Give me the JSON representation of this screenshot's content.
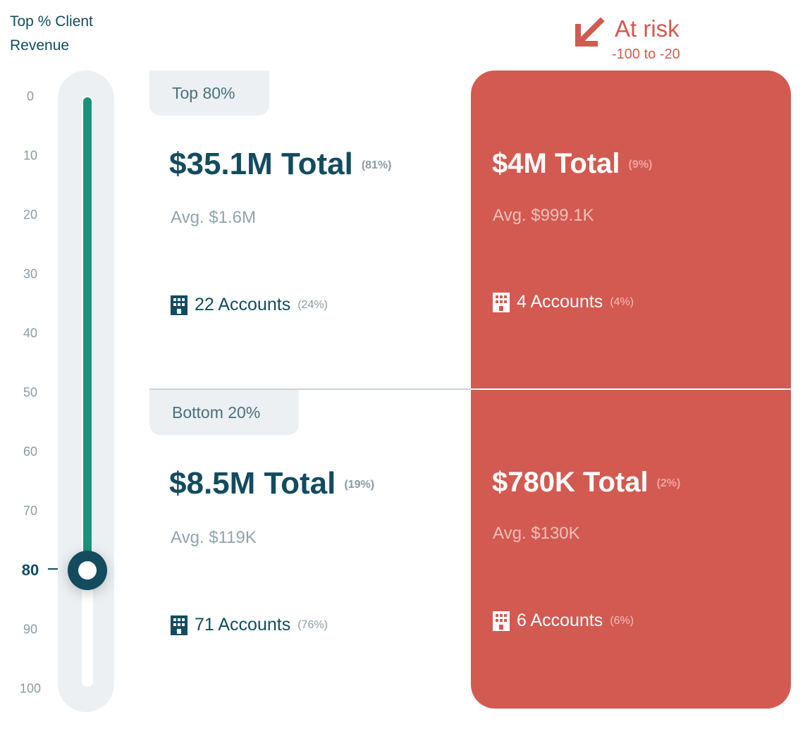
{
  "slider": {
    "title_line1": "Top % Client",
    "title_line2": "Revenue",
    "ticks": [
      "0",
      "10",
      "20",
      "30",
      "40",
      "50",
      "60",
      "70",
      "80",
      "90",
      "100"
    ],
    "value": 80,
    "min": 0,
    "max": 100,
    "accent_color": "#1f917a"
  },
  "risk_header": {
    "label": "At risk",
    "range": "-100 to -20",
    "icon": "arrow-down-left-icon",
    "color": "#d25a51"
  },
  "segments": [
    {
      "tab_label": "Top 80%",
      "main": {
        "total": "$35.1M Total",
        "total_pct": "(81%)",
        "avg": "Avg. $1.6M",
        "accounts": "22 Accounts",
        "accounts_pct": "(24%)"
      },
      "risk": {
        "total": "$4M Total",
        "total_pct": "(9%)",
        "avg": "Avg. $999.1K",
        "accounts": "4 Accounts",
        "accounts_pct": "(4%)"
      }
    },
    {
      "tab_label": "Bottom 20%",
      "main": {
        "total": "$8.5M Total",
        "total_pct": "(19%)",
        "avg": "Avg. $119K",
        "accounts": "71 Accounts",
        "accounts_pct": "(76%)"
      },
      "risk": {
        "total": "$780K Total",
        "total_pct": "(2%)",
        "avg": "Avg. $130K",
        "accounts": "6 Accounts",
        "accounts_pct": "(6%)"
      }
    }
  ],
  "icons": {
    "accounts": "building-icon"
  }
}
